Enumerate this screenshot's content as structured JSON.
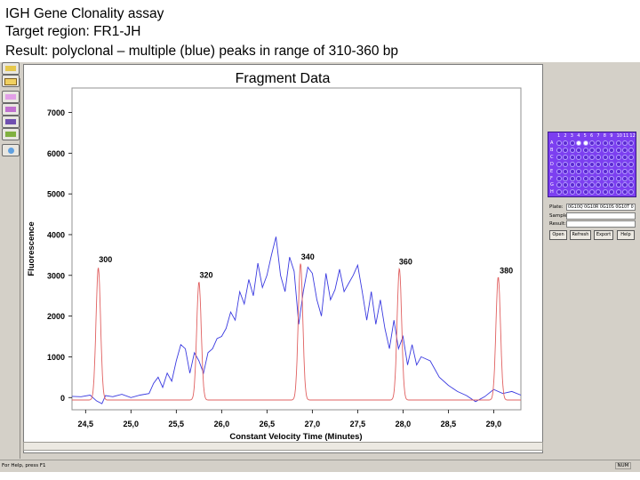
{
  "slide": {
    "line1": "IGH Gene Clonality assay",
    "line2": "Target region: FR1-JH",
    "line3": "Result: polyclonal – multiple (blue) peaks in range of 310-360 bp"
  },
  "toolbar": {
    "icons": [
      "gel-image-icon",
      "sizing-table-icon",
      "overlay-icon",
      "electropherogram-icon",
      "trace-icon",
      "zoom-icon"
    ]
  },
  "plate_panel": {
    "columns": [
      "1",
      "2",
      "3",
      "4",
      "5",
      "6",
      "7",
      "8",
      "9",
      "10",
      "11",
      "12"
    ],
    "rows": [
      "A",
      "B",
      "C",
      "D",
      "E",
      "F",
      "G",
      "H"
    ],
    "plate_label": "Plate:",
    "plate_value": "0G10Q 0G10R 0G10S 0G10T 0",
    "sample_label": "Sample:",
    "result_label": "Result:",
    "buttons": {
      "open": "Open",
      "refresh": "Refresh",
      "export": "Export",
      "help": "Help"
    }
  },
  "status_bar": {
    "help_text": "For Help, press F1",
    "num": "NUM"
  },
  "colors": {
    "blue_trace": "#3a3ae0",
    "red_trace": "#e06060",
    "plate": "#7c3ff0"
  },
  "chart_data": {
    "type": "line",
    "title": "Fragment Data",
    "xlabel": "Constant Velocity Time (Minutes)",
    "ylabel": "Fluorescence",
    "xlim": [
      24.35,
      29.3
    ],
    "ylim": [
      -300,
      7600
    ],
    "xticks": [
      24.5,
      25.0,
      25.5,
      26.0,
      26.5,
      27.0,
      27.5,
      28.0,
      28.5,
      29.0
    ],
    "xtick_labels": [
      "24,5",
      "25,0",
      "25,5",
      "26,0",
      "26,5",
      "27,0",
      "27,5",
      "28,0",
      "28,5",
      "29,0"
    ],
    "yticks": [
      0,
      1000,
      2000,
      3000,
      4000,
      5000,
      6000,
      7000
    ],
    "ytick_labels": [
      "0",
      "1000",
      "2000",
      "3000",
      "4000",
      "5000",
      "6000",
      "7000"
    ],
    "annotations": [
      {
        "text": "300",
        "x": 24.72,
        "y": 3320
      },
      {
        "text": "320",
        "x": 25.83,
        "y": 2940
      },
      {
        "text": "340",
        "x": 26.95,
        "y": 3390
      },
      {
        "text": "360",
        "x": 28.03,
        "y": 3270
      },
      {
        "text": "380",
        "x": 29.14,
        "y": 3050
      }
    ],
    "series": [
      {
        "color": "#e06060",
        "peaks": [
          {
            "x": 24.64,
            "height": 3250
          },
          {
            "x": 25.75,
            "height": 2900
          },
          {
            "x": 26.87,
            "height": 3350
          },
          {
            "x": 27.96,
            "height": 3230
          },
          {
            "x": 29.05,
            "height": 3020
          }
        ],
        "baseline": -60,
        "width": 0.025
      },
      {
        "color": "#3a3ae0",
        "x": [
          24.35,
          24.45,
          24.55,
          24.62,
          24.68,
          24.72,
          24.8,
          24.9,
          25.0,
          25.1,
          25.2,
          25.25,
          25.3,
          25.35,
          25.4,
          25.45,
          25.5,
          25.55,
          25.6,
          25.65,
          25.7,
          25.75,
          25.8,
          25.85,
          25.9,
          25.95,
          26.0,
          26.05,
          26.1,
          26.15,
          26.2,
          26.25,
          26.3,
          26.35,
          26.4,
          26.45,
          26.5,
          26.55,
          26.6,
          26.65,
          26.7,
          26.75,
          26.8,
          26.85,
          26.9,
          26.95,
          27.0,
          27.05,
          27.1,
          27.15,
          27.2,
          27.25,
          27.3,
          27.35,
          27.4,
          27.45,
          27.5,
          27.55,
          27.6,
          27.65,
          27.7,
          27.75,
          27.8,
          27.85,
          27.9,
          27.95,
          28.0,
          28.05,
          28.1,
          28.15,
          28.2,
          28.3,
          28.4,
          28.5,
          28.6,
          28.7,
          28.8,
          28.9,
          29.0,
          29.1,
          29.2,
          29.3
        ],
        "y": [
          30,
          20,
          60,
          -80,
          -150,
          50,
          20,
          80,
          0,
          60,
          100,
          350,
          500,
          250,
          600,
          400,
          900,
          1300,
          1200,
          600,
          1100,
          900,
          600,
          1100,
          1200,
          1450,
          1500,
          1700,
          2100,
          1900,
          2600,
          2300,
          2900,
          2500,
          3300,
          2700,
          3000,
          3500,
          3950,
          3000,
          2600,
          3450,
          3100,
          1800,
          2600,
          3200,
          3050,
          2400,
          2000,
          3050,
          2400,
          2650,
          3150,
          2600,
          2800,
          3000,
          3250,
          2600,
          1900,
          2600,
          1800,
          2400,
          1700,
          1200,
          1900,
          1200,
          1500,
          800,
          1300,
          800,
          1000,
          900,
          500,
          300,
          150,
          50,
          -100,
          20,
          200,
          100,
          150,
          60
        ]
      }
    ]
  }
}
